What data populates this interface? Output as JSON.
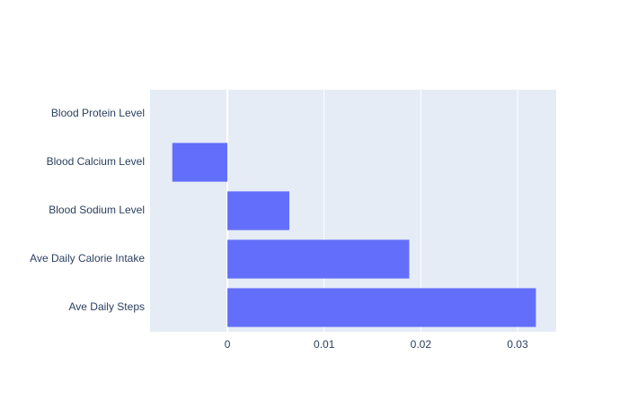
{
  "chart_data": {
    "type": "bar",
    "orientation": "horizontal",
    "categories": [
      "Blood Protein Level",
      "Blood Calcium Level",
      "Blood Sodium Level",
      "Ave Daily Calorie Intake",
      "Ave Daily Steps"
    ],
    "values": [
      0.0,
      -0.0057,
      0.0064,
      0.0188,
      0.0319
    ],
    "xlim": [
      -0.008,
      0.034
    ],
    "xticks": [
      0,
      0.01,
      0.02,
      0.03
    ],
    "xtick_labels": [
      "0",
      "0.01",
      "0.02",
      "0.03"
    ],
    "title": "",
    "xlabel": "",
    "ylabel": "",
    "grid": true,
    "legend": "none",
    "colors": {
      "bar": "#636efa",
      "plot_background": "#e5ecf6",
      "grid": "#ffffff",
      "text": "#2a3f5f"
    }
  }
}
